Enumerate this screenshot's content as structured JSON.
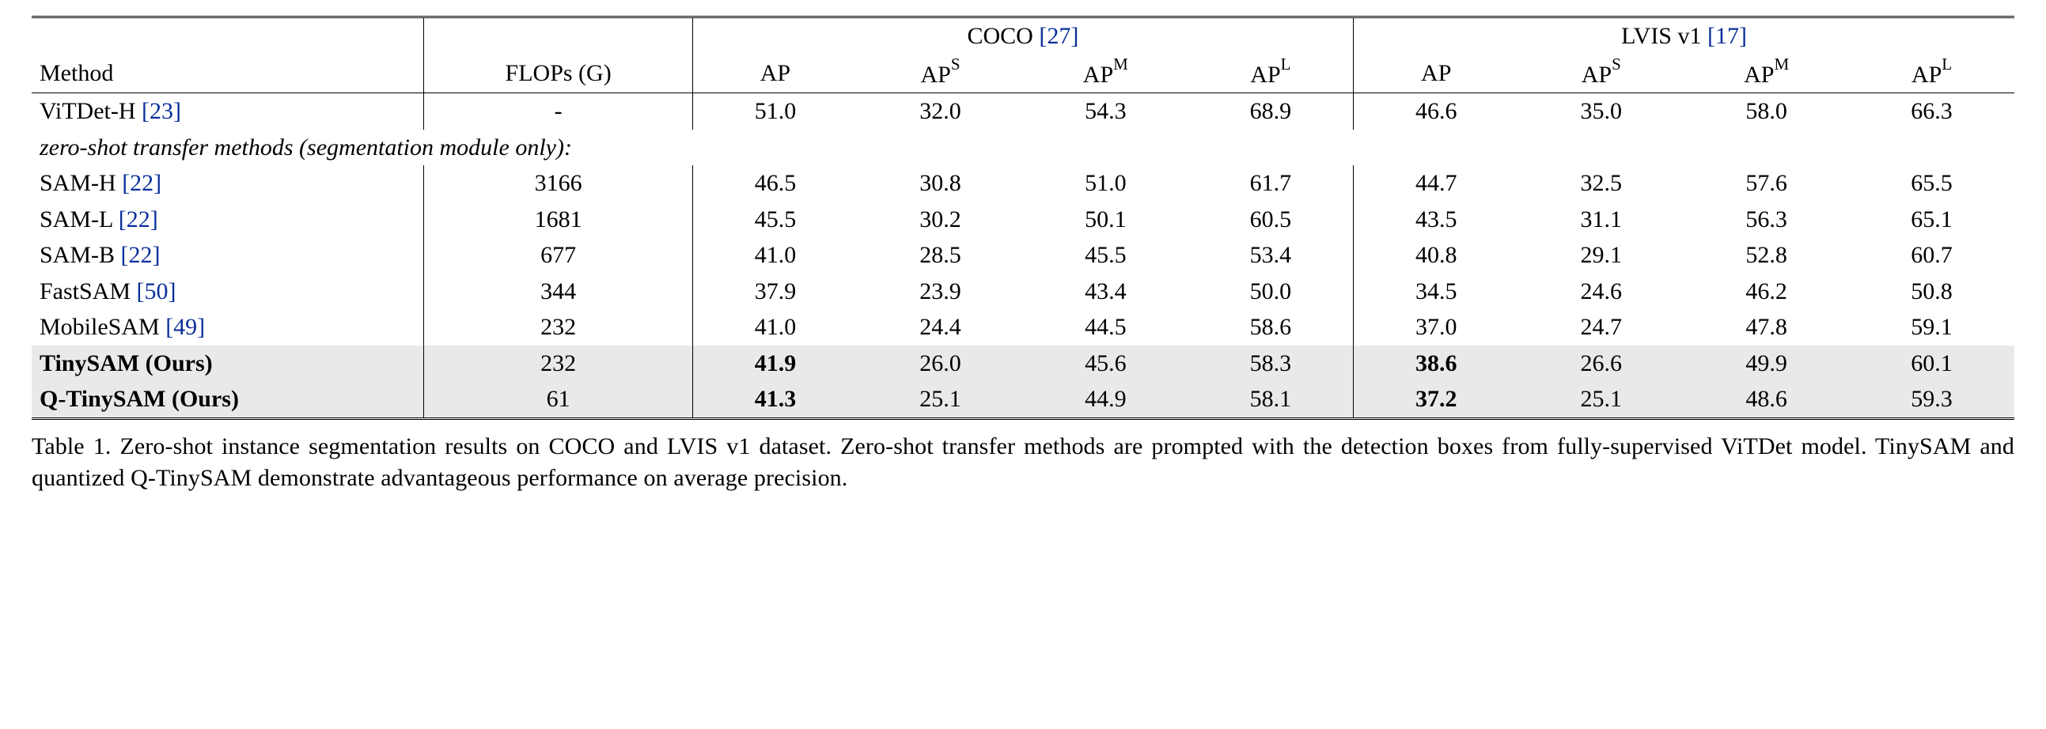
{
  "table": {
    "datasets": {
      "coco": {
        "name": "COCO",
        "cite": "[27]",
        "cite_color": "#0a2f9c"
      },
      "lvis": {
        "name": "LVIS v1",
        "cite": "[17]",
        "cite_color": "#0a2f9c"
      }
    },
    "header": {
      "method": "Method",
      "flops": "FLOPs (G)",
      "ap": "AP",
      "apS_base": "AP",
      "apS_sup": "S",
      "apM_base": "AP",
      "apM_sup": "M",
      "apL_base": "AP",
      "apL_sup": "L"
    },
    "section_label": "zero-shot transfer methods (segmentation module only):",
    "cite_color": "#0a2f9c",
    "highlight_bg": "#e9e9e9",
    "top_rows": [
      {
        "method": "ViTDet-H",
        "cite": "[23]",
        "flops": "-",
        "coco": {
          "ap": "51.0",
          "apS": "32.0",
          "apM": "54.3",
          "apL": "68.9"
        },
        "lvis": {
          "ap": "46.6",
          "apS": "35.0",
          "apM": "58.0",
          "apL": "66.3"
        },
        "bold_method": false,
        "bold_coco_ap": false,
        "bold_lvis_ap": false,
        "highlight": false
      }
    ],
    "rows": [
      {
        "method": "SAM-H",
        "cite": "[22]",
        "flops": "3166",
        "coco": {
          "ap": "46.5",
          "apS": "30.8",
          "apM": "51.0",
          "apL": "61.7"
        },
        "lvis": {
          "ap": "44.7",
          "apS": "32.5",
          "apM": "57.6",
          "apL": "65.5"
        },
        "bold_method": false,
        "bold_coco_ap": false,
        "bold_lvis_ap": false,
        "highlight": false
      },
      {
        "method": "SAM-L",
        "cite": "[22]",
        "flops": "1681",
        "coco": {
          "ap": "45.5",
          "apS": "30.2",
          "apM": "50.1",
          "apL": "60.5"
        },
        "lvis": {
          "ap": "43.5",
          "apS": "31.1",
          "apM": "56.3",
          "apL": "65.1"
        },
        "bold_method": false,
        "bold_coco_ap": false,
        "bold_lvis_ap": false,
        "highlight": false
      },
      {
        "method": "SAM-B",
        "cite": "[22]",
        "flops": "677",
        "coco": {
          "ap": "41.0",
          "apS": "28.5",
          "apM": "45.5",
          "apL": "53.4"
        },
        "lvis": {
          "ap": "40.8",
          "apS": "29.1",
          "apM": "52.8",
          "apL": "60.7"
        },
        "bold_method": false,
        "bold_coco_ap": false,
        "bold_lvis_ap": false,
        "highlight": false
      },
      {
        "method": "FastSAM",
        "cite": "[50]",
        "flops": "344",
        "coco": {
          "ap": "37.9",
          "apS": "23.9",
          "apM": "43.4",
          "apL": "50.0"
        },
        "lvis": {
          "ap": "34.5",
          "apS": "24.6",
          "apM": "46.2",
          "apL": "50.8"
        },
        "bold_method": false,
        "bold_coco_ap": false,
        "bold_lvis_ap": false,
        "highlight": false
      },
      {
        "method": "MobileSAM",
        "cite": "[49]",
        "flops": "232",
        "coco": {
          "ap": "41.0",
          "apS": "24.4",
          "apM": "44.5",
          "apL": "58.6"
        },
        "lvis": {
          "ap": "37.0",
          "apS": "24.7",
          "apM": "47.8",
          "apL": "59.1"
        },
        "bold_method": false,
        "bold_coco_ap": false,
        "bold_lvis_ap": false,
        "highlight": false
      },
      {
        "method": "TinySAM (Ours)",
        "cite": "",
        "flops": "232",
        "coco": {
          "ap": "41.9",
          "apS": "26.0",
          "apM": "45.6",
          "apL": "58.3"
        },
        "lvis": {
          "ap": "38.6",
          "apS": "26.6",
          "apM": "49.9",
          "apL": "60.1"
        },
        "bold_method": true,
        "bold_coco_ap": true,
        "bold_lvis_ap": true,
        "highlight": true
      },
      {
        "method": "Q-TinySAM (Ours)",
        "cite": "",
        "flops": "61",
        "coco": {
          "ap": "41.3",
          "apS": "25.1",
          "apM": "44.9",
          "apL": "58.1"
        },
        "lvis": {
          "ap": "37.2",
          "apS": "25.1",
          "apM": "48.6",
          "apL": "59.3"
        },
        "bold_method": true,
        "bold_coco_ap": true,
        "bold_lvis_ap": true,
        "highlight": true
      }
    ]
  },
  "caption": {
    "label": "Table 1.",
    "text": "Zero-shot instance segmentation results on COCO and LVIS v1 dataset.  Zero-shot transfer methods are prompted with the detection boxes from fully-supervised ViTDet model.  TinySAM and quantized Q-TinySAM demonstrate advantageous performance on average precision."
  }
}
